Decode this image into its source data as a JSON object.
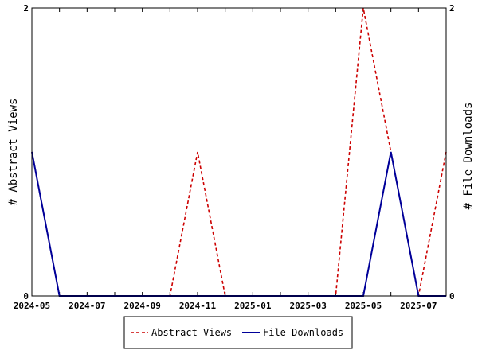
{
  "chart_data": {
    "type": "line",
    "x": [
      "2024-05",
      "2024-06",
      "2024-07",
      "2024-08",
      "2024-09",
      "2024-10",
      "2024-11",
      "2024-12",
      "2025-01",
      "2025-02",
      "2025-03",
      "2025-04",
      "2025-05",
      "2025-06",
      "2025-07",
      "2025-08"
    ],
    "x_tick_labels": [
      "2024-05",
      "2024-07",
      "2024-09",
      "2024-11",
      "2025-01",
      "2025-03",
      "2025-05",
      "2025-07"
    ],
    "series": [
      {
        "name": "Abstract Views",
        "axis": "left",
        "color": "#cc0000",
        "dash": "dashed",
        "values": [
          1,
          0,
          0,
          0,
          0,
          0,
          1,
          0,
          0,
          0,
          0,
          0,
          2,
          1,
          0,
          1
        ]
      },
      {
        "name": "File Downloads",
        "axis": "right",
        "color": "#000099",
        "dash": "solid",
        "values": [
          1,
          0,
          0,
          0,
          0,
          0,
          0,
          0,
          0,
          0,
          0,
          0,
          0,
          1,
          0,
          0
        ]
      }
    ],
    "ylabel_left": "# Abstract Views",
    "ylabel_right": "# File Downloads",
    "ylim_left": [
      0,
      2
    ],
    "ylim_right": [
      0,
      2
    ],
    "y_ticks_left": [
      "0",
      "2"
    ],
    "y_ticks_right": [
      "0",
      "2"
    ],
    "grid": false,
    "legend_position": "bottom"
  }
}
